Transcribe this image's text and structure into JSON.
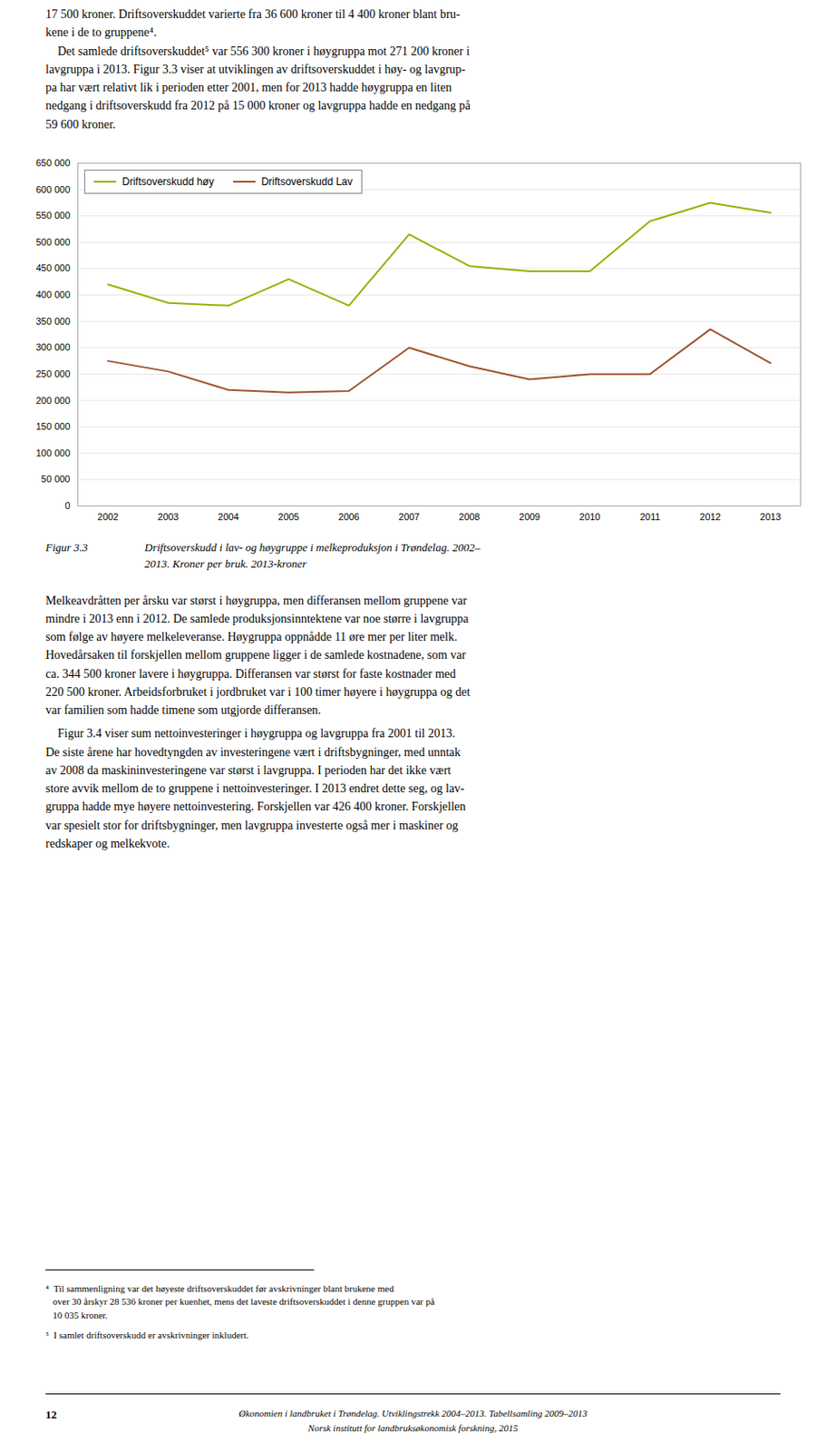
{
  "chart_data": {
    "type": "line",
    "title": "Figur 3.3",
    "subtitle": "Driftsoverskudd i lav- og høygruppe i melkeproduksjon i Trøndelag. 2002–\n2013. Kroner per bruk. 2013-kroner",
    "x": [
      2002,
      2003,
      2004,
      2005,
      2006,
      2007,
      2008,
      2009,
      2010,
      2011,
      2012,
      2013
    ],
    "series": [
      {
        "name": "Driftsoverskudd høy",
        "color": "#8DB600",
        "values": [
          420000,
          385000,
          380000,
          430000,
          380000,
          515000,
          455000,
          445000,
          445000,
          540000,
          575000,
          556000
        ]
      },
      {
        "name": "Driftsoverskudd Lav",
        "color": "#A0522D",
        "values": [
          275000,
          255000,
          220000,
          215000,
          218000,
          300000,
          265000,
          240000,
          250000,
          250000,
          335000,
          271000
        ]
      }
    ],
    "xlim": [
      2001.5,
      2013.5
    ],
    "xticks": [
      2002,
      2003,
      2004,
      2005,
      2006,
      2007,
      2008,
      2009,
      2010,
      2011,
      2012,
      2013
    ],
    "ylim": [
      0,
      650000
    ],
    "yticks": [
      0,
      {
        "value": 50000,
        "label": "50 000"
      },
      {
        "value": 100000,
        "label": "100 000"
      },
      {
        "value": 150000,
        "label": "150 000"
      },
      {
        "value": 200000,
        "label": "200 000"
      },
      {
        "value": 250000,
        "label": "250 000"
      },
      {
        "value": 300000,
        "label": "300 000"
      },
      {
        "value": 350000,
        "label": "350 000"
      },
      {
        "value": 400000,
        "label": "400 000"
      },
      {
        "value": 450000,
        "label": "450 000"
      },
      {
        "value": 500000,
        "label": "500 000"
      },
      {
        "value": 550000,
        "label": "550 000"
      },
      {
        "value": 600000,
        "label": "600 000"
      },
      {
        "value": 650000,
        "label": "650 000"
      }
    ],
    "grid": true,
    "legend": "upper left",
    "annotations": [
      "17 500 kroner. Driftsoverskuddet varierte fra 36 600 kroner til 4 400 kroner blant bru-\nkene i de to gruppene⁴.\n    Det samlede driftsoverskuddet⁵ var 556 300 kroner i høygruppa mot 271 200 kroner i\nlavgruppa i 2013. Figur 3.3 viser at utviklingen av driftsoverskuddet i høy- og lavgrup-\npa har vært relativt lik i perioden etter 2001, men for 2013 hadde høygruppa en liten\nnedgang i driftsoverskudd fra 2012 på 15 000 kroner og lavgruppa hadde en nedgang på\n59 600 kroner.",
      "Melkeavdråtten per årsku var størst i høygruppa, men differansen mellom gruppene var\nmindre i 2013 enn i 2012. De samlede produksjonsinntektene var noe større i lavgruppa\nsom følge av høyere melkeleveranse. Høygruppa oppnådde 11 øre mer per liter melk.\nHovedårsaken til forskjellen mellom gruppene ligger i de samlede kostnadene, som var\nca. 344 500 kroner lavere i høygruppa. Differansen var størst for faste kostnader med\n220 500 kroner. Arbeidsforbruket i jordbruket var i 100 timer høyere i høygruppa og det\nvar familien som hadde timene som utgjorde differansen.",
      "    Figur 3.4 viser sum nettoinvesteringer i høygruppa og lavgruppa fra 2001 til 2013.\nDe siste årene har hovedtyngden av investeringene vært i driftsbygninger, med unntak\nav 2008 da maskininvesteringene var størst i lavgruppa. I perioden har det ikke vært\nstore avvik mellom de to gruppene i nettoinvesteringer. I 2013 endret dette seg, og lav-\ngruppa hadde mye høyere nettoinvestering. Forskjellen var 426 400 kroner. Forskjellen\nvar spesielt stor for driftsbygninger, men lavgruppa investerte også mer i maskiner og\nredskaper og melkekvote.",
      "⁴  Til sammenligning var det høyeste driftsoverskuddet før avskrivninger blant brukene med\n   over 30 årskyr 28 536 kroner per kuenhet, mens det laveste driftsoverskuddet i denne gruppen var på\n   10 035 kroner.",
      "⁵  I samlet driftsoverskudd er avskrivninger inkludert.",
      "12",
      "Økonomien i landbruket i Trøndelag. Utviklingstrekk 2004–2013. Tabellsamling 2009–2013",
      "Norsk institutt for landbruksøkonomisk forskning, 2015"
    ]
  }
}
